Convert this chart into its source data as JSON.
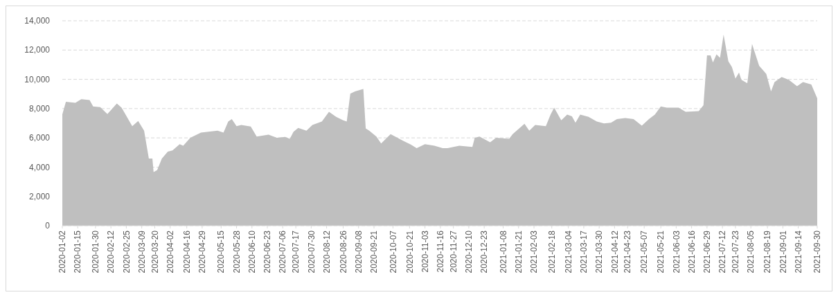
{
  "chart_data": {
    "type": "area",
    "color": "#bfbfbf",
    "grid": "y",
    "ylim": [
      0,
      14000
    ],
    "yticks": [
      {
        "value": 0,
        "label": "0"
      },
      {
        "value": 2000,
        "label": "2,000"
      },
      {
        "value": 4000,
        "label": "4,000"
      },
      {
        "value": 6000,
        "label": "6,000"
      },
      {
        "value": 8000,
        "label": "8,000"
      },
      {
        "value": 10000,
        "label": "10,000"
      },
      {
        "value": 12000,
        "label": "12,000"
      },
      {
        "value": 14000,
        "label": "14,000"
      }
    ],
    "xlim": [
      "2020-01-02",
      "2021-09-30"
    ],
    "xticks": [
      {
        "value": "2020-01-02",
        "label": "2020-01-02"
      },
      {
        "value": "2020-01-15",
        "label": "2020-01-15"
      },
      {
        "value": "2020-01-30",
        "label": "2020-01-30"
      },
      {
        "value": "2020-02-12",
        "label": "2020-02-12"
      },
      {
        "value": "2020-02-25",
        "label": "2020-02-25"
      },
      {
        "value": "2020-03-09",
        "label": "2020-03-09"
      },
      {
        "value": "2020-03-20",
        "label": "2020-03-20"
      },
      {
        "value": "2020-04-02",
        "label": "2020-04-02"
      },
      {
        "value": "2020-04-16",
        "label": "2020-04-16"
      },
      {
        "value": "2020-04-29",
        "label": "2020-04-29"
      },
      {
        "value": "2020-05-15",
        "label": "2020-05-15"
      },
      {
        "value": "2020-05-28",
        "label": "2020-05-28"
      },
      {
        "value": "2020-06-10",
        "label": "2020-06-10"
      },
      {
        "value": "2020-06-23",
        "label": "2020-06-23"
      },
      {
        "value": "2020-07-06",
        "label": "2020-07-06"
      },
      {
        "value": "2020-07-17",
        "label": "2020-07-17"
      },
      {
        "value": "2020-07-30",
        "label": "2020-07-30"
      },
      {
        "value": "2020-08-12",
        "label": "2020-08-12"
      },
      {
        "value": "2020-08-26",
        "label": "2020-08-26"
      },
      {
        "value": "2020-09-08",
        "label": "2020-09-08"
      },
      {
        "value": "2020-09-21",
        "label": "2020-09-21"
      },
      {
        "value": "2020-10-07",
        "label": "2020-10-07"
      },
      {
        "value": "2020-10-21",
        "label": "2020-10-21"
      },
      {
        "value": "2020-11-03",
        "label": "2020-11-03"
      },
      {
        "value": "2020-11-16",
        "label": "2020-11-16"
      },
      {
        "value": "2020-11-27",
        "label": "2020-11-27"
      },
      {
        "value": "2020-12-10",
        "label": "2020-12-10"
      },
      {
        "value": "2020-12-23",
        "label": "2020-12-23"
      },
      {
        "value": "2021-01-08",
        "label": "2021-01-08"
      },
      {
        "value": "2021-01-21",
        "label": "2021-01-21"
      },
      {
        "value": "2021-02-03",
        "label": "2021-02-03"
      },
      {
        "value": "2021-02-18",
        "label": "2021-02-18"
      },
      {
        "value": "2021-03-04",
        "label": "2021-03-04"
      },
      {
        "value": "2021-03-17",
        "label": "2021-03-17"
      },
      {
        "value": "2021-03-30",
        "label": "2021-03-30"
      },
      {
        "value": "2021-04-12",
        "label": "2021-04-12"
      },
      {
        "value": "2021-04-23",
        "label": "2021-04-23"
      },
      {
        "value": "2021-05-07",
        "label": "2021-05-07"
      },
      {
        "value": "2021-05-21",
        "label": "2021-05-21"
      },
      {
        "value": "2021-06-03",
        "label": "2021-06-03"
      },
      {
        "value": "2021-06-16",
        "label": "2021-06-16"
      },
      {
        "value": "2021-06-29",
        "label": "2021-06-29"
      },
      {
        "value": "2021-07-12",
        "label": "2021-07-12"
      },
      {
        "value": "2021-07-23",
        "label": "2021-07-23"
      },
      {
        "value": "2021-08-05",
        "label": "2021-08-05"
      },
      {
        "value": "2021-08-19",
        "label": "2021-08-19"
      },
      {
        "value": "2021-09-01",
        "label": "2021-09-01"
      },
      {
        "value": "2021-09-14",
        "label": "2021-09-14"
      },
      {
        "value": "2021-09-30",
        "label": "2021-09-30"
      }
    ],
    "x": [
      "2020-01-02",
      "2020-01-05",
      "2020-01-13",
      "2020-01-18",
      "2020-01-25",
      "2020-01-28",
      "2020-02-03",
      "2020-02-09",
      "2020-02-17",
      "2020-02-21",
      "2020-03-01",
      "2020-03-06",
      "2020-03-11",
      "2020-03-15",
      "2020-03-18",
      "2020-03-19",
      "2020-03-22",
      "2020-03-26",
      "2020-03-31",
      "2020-04-04",
      "2020-04-10",
      "2020-04-13",
      "2020-04-19",
      "2020-04-22",
      "2020-04-28",
      "2020-05-12",
      "2020-05-17",
      "2020-05-21",
      "2020-05-24",
      "2020-05-28",
      "2020-06-01",
      "2020-06-09",
      "2020-06-14",
      "2020-06-24",
      "2020-07-01",
      "2020-07-08",
      "2020-07-12",
      "2020-07-15",
      "2020-07-19",
      "2020-07-26",
      "2020-07-31",
      "2020-08-08",
      "2020-08-14",
      "2020-08-20",
      "2020-08-26",
      "2020-08-29",
      "2020-09-01",
      "2020-09-05",
      "2020-09-12",
      "2020-09-14",
      "2020-09-17",
      "2020-09-23",
      "2020-09-27",
      "2020-10-05",
      "2020-10-16",
      "2020-10-22",
      "2020-10-27",
      "2020-11-03",
      "2020-11-11",
      "2020-11-18",
      "2020-11-22",
      "2020-12-02",
      "2020-12-13",
      "2020-12-15",
      "2020-12-19",
      "2020-12-28",
      "2021-01-02",
      "2021-01-13",
      "2021-01-16",
      "2021-01-26",
      "2021-01-30",
      "2021-02-04",
      "2021-02-13",
      "2021-02-17",
      "2021-02-20",
      "2021-02-26",
      "2021-03-03",
      "2021-03-07",
      "2021-03-10",
      "2021-03-14",
      "2021-03-21",
      "2021-03-28",
      "2021-04-03",
      "2021-04-09",
      "2021-04-14",
      "2021-04-21",
      "2021-04-28",
      "2021-05-05",
      "2021-05-11",
      "2021-05-16",
      "2021-05-21",
      "2021-05-26",
      "2021-06-05",
      "2021-06-11",
      "2021-06-22",
      "2021-06-26",
      "2021-06-29",
      "2021-07-02",
      "2021-07-04",
      "2021-07-07",
      "2021-07-10",
      "2021-07-13",
      "2021-07-17",
      "2021-07-20",
      "2021-07-23",
      "2021-07-26",
      "2021-07-28",
      "2021-08-02",
      "2021-08-06",
      "2021-08-12",
      "2021-08-18",
      "2021-08-22",
      "2021-08-25",
      "2021-08-31",
      "2021-09-06",
      "2021-09-13",
      "2021-09-18",
      "2021-09-25",
      "2021-09-30"
    ],
    "values": [
      7600,
      8470,
      8400,
      8640,
      8590,
      8150,
      8100,
      7630,
      8350,
      8060,
      6800,
      7150,
      6490,
      4590,
      4590,
      3670,
      3800,
      4590,
      5060,
      5140,
      5570,
      5460,
      6010,
      6120,
      6360,
      6490,
      6360,
      7120,
      7280,
      6800,
      6880,
      6770,
      6090,
      6220,
      6010,
      6060,
      5930,
      6410,
      6680,
      6490,
      6880,
      7120,
      7780,
      7440,
      7200,
      7120,
      9020,
      9180,
      9340,
      6650,
      6490,
      6090,
      5620,
      6250,
      5780,
      5540,
      5300,
      5570,
      5460,
      5300,
      5300,
      5460,
      5380,
      6010,
      6090,
      5700,
      6010,
      5930,
      6250,
      6960,
      6490,
      6880,
      6800,
      7590,
      8070,
      7200,
      7590,
      7470,
      7040,
      7590,
      7440,
      7120,
      6990,
      7040,
      7280,
      7360,
      7280,
      6840,
      7280,
      7590,
      8150,
      8070,
      8070,
      7780,
      7830,
      8230,
      11630,
      11630,
      11150,
      11710,
      11470,
      13050,
      11230,
      10840,
      10050,
      10470,
      9970,
      9730,
      12420,
      10920,
      10370,
      9180,
      9810,
      10160,
      9970,
      9530,
      9810,
      9650,
      8700
    ]
  }
}
